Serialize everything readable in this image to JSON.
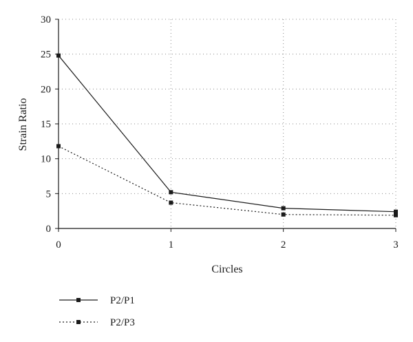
{
  "chart_data": {
    "type": "line",
    "title": "",
    "xlabel": "Circles",
    "ylabel": "Strain Ratio",
    "x": [
      0,
      1,
      2,
      3
    ],
    "xlim": [
      0,
      3
    ],
    "ylim": [
      0,
      30
    ],
    "xticks": [
      0,
      1,
      2,
      3
    ],
    "yticks": [
      0,
      5,
      10,
      15,
      20,
      25,
      30
    ],
    "grid": true,
    "legend_position": "bottom-left",
    "series": [
      {
        "name": "P2/P1",
        "values": [
          24.8,
          5.2,
          2.9,
          2.4
        ],
        "line_style": "solid",
        "marker": "square",
        "color": "#1a1a1a"
      },
      {
        "name": "P2/P3",
        "values": [
          11.8,
          3.7,
          2.0,
          1.9
        ],
        "line_style": "dotted",
        "marker": "square",
        "color": "#1a1a1a"
      }
    ]
  }
}
